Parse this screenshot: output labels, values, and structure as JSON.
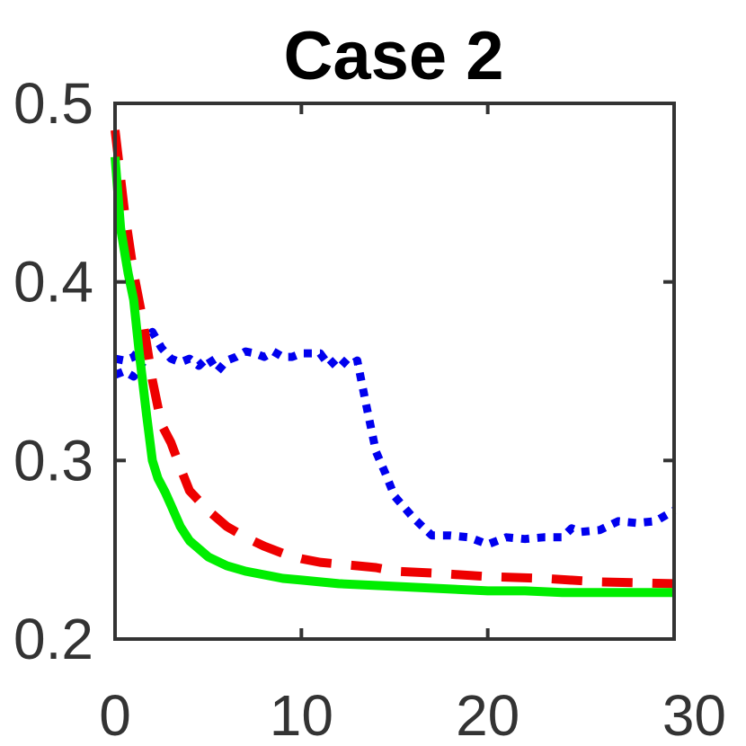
{
  "chart_data": {
    "type": "line",
    "title": "Case 2",
    "xlabel": "",
    "ylabel": "",
    "xlim": [
      0,
      30
    ],
    "ylim": [
      0.2,
      0.5
    ],
    "xticks": [
      0,
      10,
      20,
      30
    ],
    "xtick_labels": [
      "0",
      "10",
      "20",
      "30"
    ],
    "yticks": [
      0.2,
      0.3,
      0.4,
      0.5
    ],
    "ytick_labels": [
      "0.2",
      "0.3",
      "0.4",
      "0.5"
    ],
    "grid": false,
    "legend": "none",
    "series": [
      {
        "color": "#0000ee",
        "style": "dotted",
        "x": [
          0,
          0.5,
          1,
          1.5,
          2,
          2.5,
          3,
          3.5,
          4,
          4.5,
          5,
          5.5,
          6,
          6.5,
          7,
          7.5,
          8,
          8.5,
          9,
          9.5,
          10,
          10.5,
          11,
          11.5,
          12,
          12.5,
          13,
          13.5,
          14,
          14.5,
          15,
          16,
          17,
          18,
          19,
          20,
          21,
          22,
          23,
          24,
          24.5,
          25,
          26,
          27,
          28,
          29,
          30
        ],
        "y": [
          0.357,
          0.356,
          0.358,
          0.365,
          0.372,
          0.363,
          0.357,
          0.355,
          0.357,
          0.353,
          0.358,
          0.35,
          0.356,
          0.358,
          0.361,
          0.36,
          0.358,
          0.361,
          0.358,
          0.358,
          0.36,
          0.36,
          0.36,
          0.353,
          0.358,
          0.353,
          0.356,
          0.33,
          0.305,
          0.293,
          0.28,
          0.268,
          0.258,
          0.258,
          0.257,
          0.253,
          0.257,
          0.256,
          0.257,
          0.257,
          0.262,
          0.26,
          0.261,
          0.266,
          0.265,
          0.266,
          0.272
        ]
      },
      {
        "color": "#0000ee",
        "style": "dotted",
        "x": [
          0,
          0.5,
          1,
          1.5
        ],
        "y": [
          0.348,
          0.35,
          0.347,
          0.355
        ]
      },
      {
        "color": "#ee0000",
        "style": "dashed",
        "x": [
          0,
          0.5,
          1,
          1.5,
          2,
          2.5,
          3,
          3.5,
          4,
          5,
          6,
          7,
          8,
          9,
          10,
          11,
          12,
          13,
          14,
          15,
          17,
          20,
          23,
          26,
          30
        ],
        "y": [
          0.485,
          0.44,
          0.405,
          0.378,
          0.345,
          0.32,
          0.31,
          0.296,
          0.283,
          0.272,
          0.263,
          0.257,
          0.252,
          0.248,
          0.245,
          0.243,
          0.242,
          0.241,
          0.24,
          0.238,
          0.237,
          0.235,
          0.234,
          0.232,
          0.231
        ]
      },
      {
        "color": "#00ee00",
        "style": "solid",
        "x": [
          0,
          0.3,
          0.7,
          1,
          1.3,
          1.7,
          2,
          2.3,
          2.7,
          3,
          3.5,
          4,
          5,
          6,
          7,
          8,
          9,
          10,
          12,
          14,
          16,
          18,
          20,
          22,
          24,
          26,
          28,
          30
        ],
        "y": [
          0.47,
          0.43,
          0.405,
          0.39,
          0.36,
          0.325,
          0.3,
          0.29,
          0.282,
          0.275,
          0.263,
          0.255,
          0.246,
          0.241,
          0.238,
          0.236,
          0.234,
          0.233,
          0.231,
          0.23,
          0.229,
          0.228,
          0.227,
          0.227,
          0.226,
          0.226,
          0.226,
          0.226
        ]
      }
    ]
  }
}
